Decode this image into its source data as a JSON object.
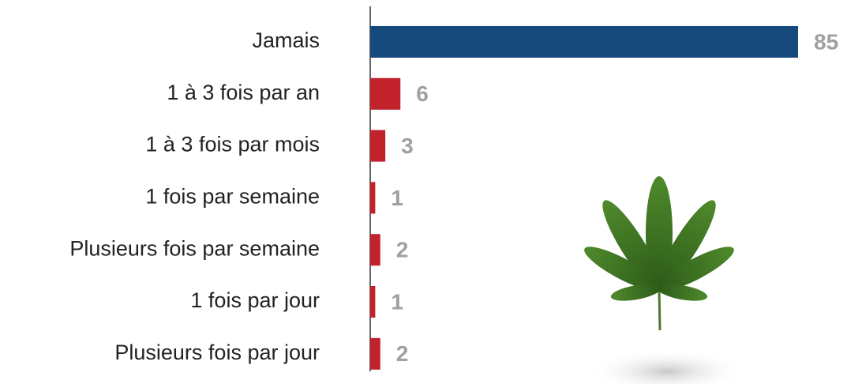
{
  "chart_data": {
    "type": "bar",
    "orientation": "horizontal",
    "categories": [
      "Jamais",
      "1 à 3 fois par an",
      "1 à 3 fois par mois",
      "1 fois par semaine",
      "Plusieurs fois par semaine",
      "1 fois par jour",
      "Plusieurs fois par jour"
    ],
    "values": [
      85,
      6,
      3,
      1,
      2,
      1,
      2
    ],
    "colors": [
      "#174a7c",
      "#c1222b",
      "#c1222b",
      "#c1222b",
      "#c1222b",
      "#c1222b",
      "#c1222b"
    ],
    "xlim": [
      0,
      85
    ]
  }
}
